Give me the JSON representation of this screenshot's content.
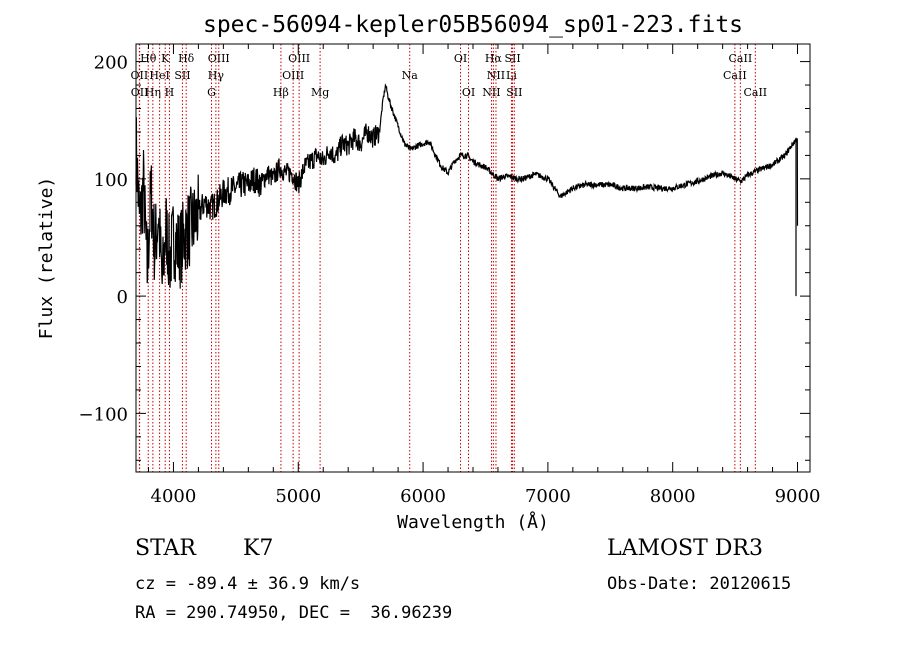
{
  "chart_data": {
    "type": "line",
    "title": "spec-56094-kepler05B56094_sp01-223.fits",
    "xlabel": "Wavelength (Å)",
    "ylabel": "Flux (relative)",
    "xlim": [
      3700,
      9100
    ],
    "ylim": [
      -150,
      215
    ],
    "xticks": [
      4000,
      5000,
      6000,
      7000,
      8000,
      9000
    ],
    "xtick_labels": [
      "4000",
      "5000",
      "6000",
      "7000",
      "8000",
      "9000"
    ],
    "yticks": [
      -100,
      0,
      100,
      200
    ],
    "ytick_labels": [
      "-100",
      "0",
      "100",
      "200"
    ],
    "series": [
      {
        "name": "spectrum",
        "x": [
          3700,
          3730,
          3760,
          3790,
          3820,
          3850,
          3880,
          3910,
          3940,
          3970,
          4000,
          4050,
          4100,
          4150,
          4200,
          4250,
          4300,
          4350,
          4400,
          4450,
          4500,
          4550,
          4600,
          4650,
          4700,
          4750,
          4800,
          4850,
          4900,
          4950,
          5000,
          5050,
          5100,
          5150,
          5200,
          5250,
          5300,
          5350,
          5400,
          5450,
          5500,
          5550,
          5600,
          5650,
          5680,
          5700,
          5720,
          5750,
          5800,
          5850,
          5900,
          5950,
          6000,
          6050,
          6100,
          6150,
          6200,
          6250,
          6300,
          6350,
          6400,
          6450,
          6500,
          6550,
          6600,
          6650,
          6700,
          6750,
          6800,
          6900,
          7000,
          7100,
          7200,
          7300,
          7400,
          7500,
          7600,
          7700,
          7800,
          7900,
          8000,
          8100,
          8200,
          8300,
          8400,
          8500,
          8550,
          8600,
          8700,
          8800,
          8900,
          8950,
          9000
        ],
        "y": [
          130,
          60,
          95,
          20,
          90,
          40,
          70,
          10,
          60,
          30,
          50,
          40,
          55,
          60,
          70,
          80,
          75,
          80,
          88,
          90,
          92,
          95,
          95,
          100,
          95,
          105,
          100,
          110,
          105,
          105,
          95,
          110,
          115,
          120,
          115,
          125,
          118,
          130,
          128,
          135,
          130,
          140,
          135,
          140,
          168,
          180,
          170,
          160,
          145,
          130,
          125,
          128,
          130,
          132,
          120,
          110,
          105,
          115,
          120,
          120,
          115,
          112,
          110,
          105,
          100,
          102,
          102,
          100,
          100,
          104,
          100,
          85,
          92,
          95,
          95,
          95,
          92,
          92,
          93,
          92,
          92,
          95,
          98,
          102,
          105,
          100,
          98,
          103,
          108,
          112,
          120,
          128,
          135
        ]
      }
    ],
    "line_markers": [
      {
        "label": "Hθ",
        "wavelength": 3798,
        "row": 1
      },
      {
        "label": "K",
        "wavelength": 3934,
        "row": 1
      },
      {
        "label": "Hδ",
        "wavelength": 4102,
        "row": 1
      },
      {
        "label": "OIII",
        "wavelength": 4363,
        "row": 1
      },
      {
        "label": "OIII",
        "wavelength": 5007,
        "row": 1
      },
      {
        "label": "OI",
        "wavelength": 6300,
        "row": 1
      },
      {
        "label": "Hα",
        "wavelength": 6563,
        "row": 1
      },
      {
        "label": "SII",
        "wavelength": 6717,
        "row": 1
      },
      {
        "label": "CaII",
        "wavelength": 8542,
        "row": 1
      },
      {
        "label": "OII",
        "wavelength": 3727,
        "row": 2
      },
      {
        "label": "HeI",
        "wavelength": 3889,
        "row": 2
      },
      {
        "label": "SII",
        "wavelength": 4072,
        "row": 2
      },
      {
        "label": "Hγ",
        "wavelength": 4340,
        "row": 2
      },
      {
        "label": "OIII",
        "wavelength": 4959,
        "row": 2
      },
      {
        "label": "Na",
        "wavelength": 5893,
        "row": 2
      },
      {
        "label": "NII",
        "wavelength": 6584,
        "row": 2
      },
      {
        "label": "Li",
        "wavelength": 6708,
        "row": 2
      },
      {
        "label": "CaII",
        "wavelength": 8498,
        "row": 2
      },
      {
        "label": "OII",
        "wavelength": 3729,
        "row": 3
      },
      {
        "label": "Hη",
        "wavelength": 3835,
        "row": 3
      },
      {
        "label": "H",
        "wavelength": 3968,
        "row": 3
      },
      {
        "label": "G",
        "wavelength": 4305,
        "row": 3
      },
      {
        "label": "Hβ",
        "wavelength": 4861,
        "row": 3
      },
      {
        "label": "Mg",
        "wavelength": 5175,
        "row": 3
      },
      {
        "label": "OI",
        "wavelength": 6364,
        "row": 3
      },
      {
        "label": "NII",
        "wavelength": 6548,
        "row": 3
      },
      {
        "label": "SII",
        "wavelength": 6731,
        "row": 3
      },
      {
        "label": "CaII",
        "wavelength": 8662,
        "row": 3
      }
    ]
  },
  "info": {
    "object_type": "STAR",
    "object_class": "K7",
    "survey": "LAMOST DR3",
    "cz_line": "cz = -89.4 ± 36.9 km/s",
    "obs_date_line": "Obs-Date: 20120615",
    "radec_line": "RA = 290.74950, DEC =  36.96239"
  },
  "colors": {
    "spectrum": "#000000",
    "marker_line": "#cc0000",
    "axes": "#000000"
  }
}
